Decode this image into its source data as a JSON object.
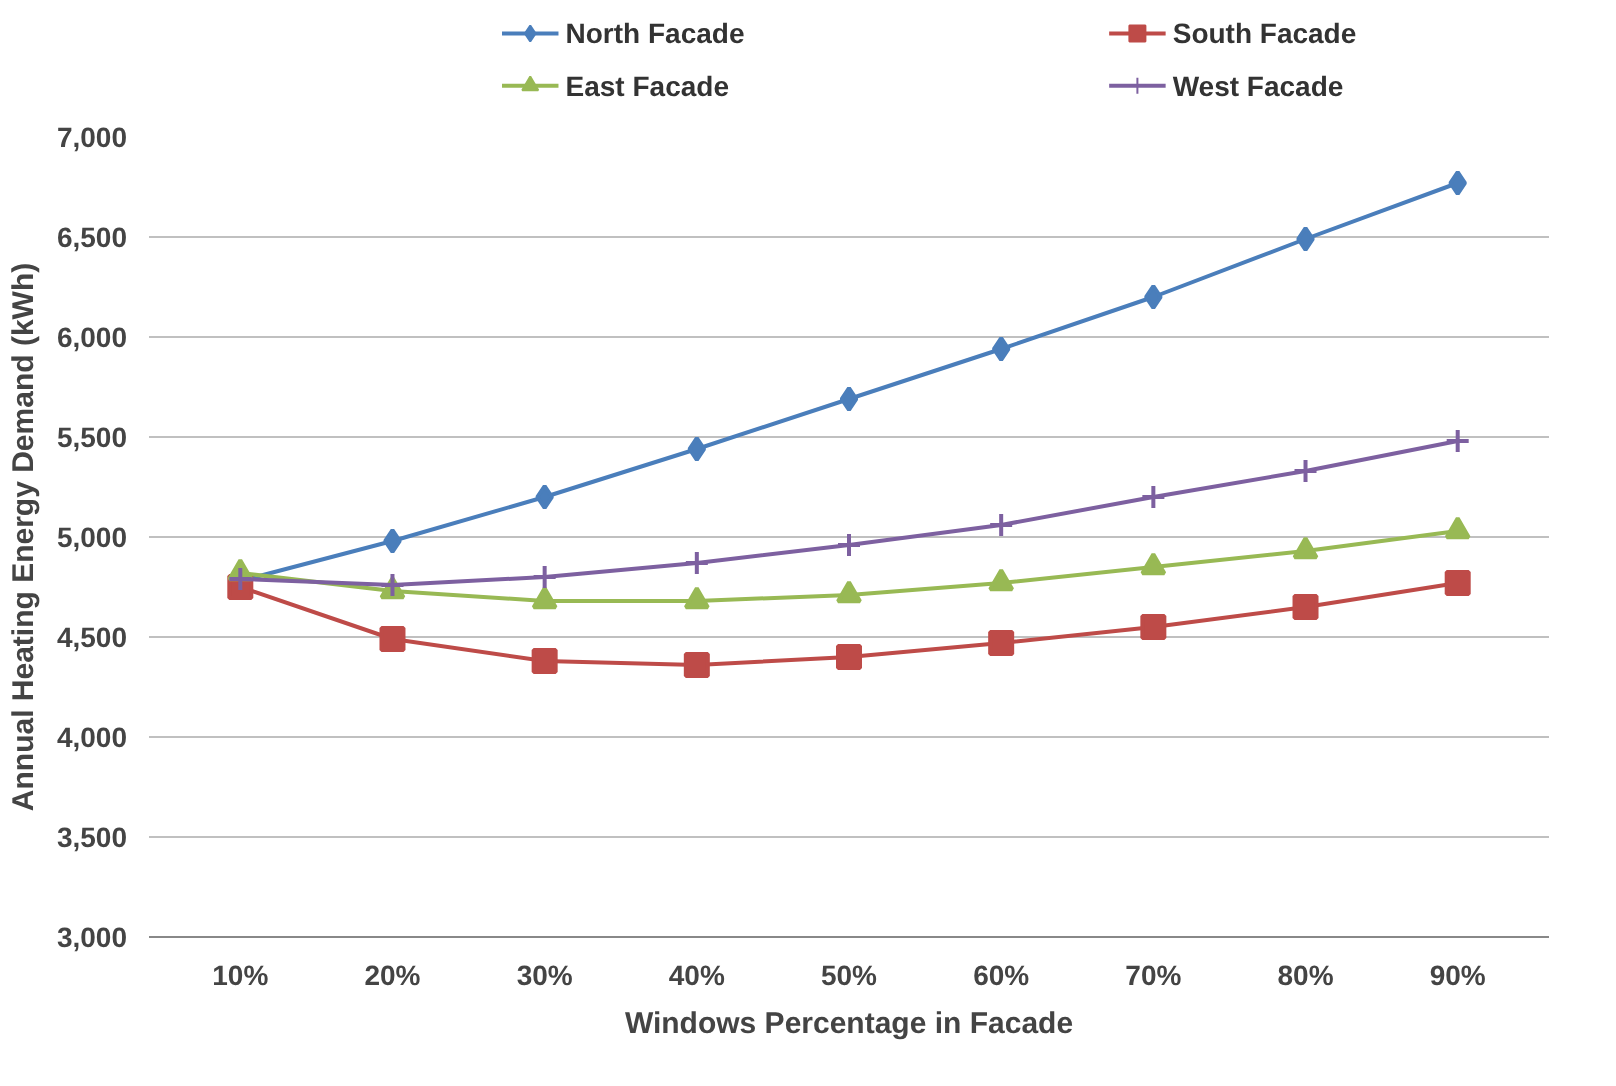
{
  "chart_data": {
    "type": "line",
    "xlabel": "Windows Percentage in Facade",
    "ylabel": "Annual Heating Energy Demand (kWh)",
    "categories": [
      "10%",
      "20%",
      "30%",
      "40%",
      "50%",
      "60%",
      "70%",
      "80%",
      "90%"
    ],
    "ylim": [
      3000,
      7000
    ],
    "yticks": [
      {
        "value": 3000,
        "label": "3,000"
      },
      {
        "value": 3500,
        "label": "3,500"
      },
      {
        "value": 4000,
        "label": "4,000"
      },
      {
        "value": 4500,
        "label": "4,500"
      },
      {
        "value": 5000,
        "label": "5,000"
      },
      {
        "value": 5500,
        "label": "5,500"
      },
      {
        "value": 6000,
        "label": "6,000"
      },
      {
        "value": 6500,
        "label": "6,500"
      },
      {
        "value": 7000,
        "label": "7,000"
      }
    ],
    "grid": "y",
    "legend": "top",
    "series": [
      {
        "name": "North Facade",
        "color": "#4a7ebb",
        "marker": "diamond",
        "values": [
          4780,
          4980,
          5200,
          5440,
          5690,
          5940,
          6200,
          6490,
          6770
        ]
      },
      {
        "name": "South Facade",
        "color": "#be4b48",
        "marker": "square",
        "values": [
          4750,
          4490,
          4380,
          4360,
          4400,
          4470,
          4550,
          4650,
          4770
        ]
      },
      {
        "name": "East Facade",
        "color": "#98b954",
        "marker": "triangle",
        "values": [
          4820,
          4730,
          4680,
          4680,
          4710,
          4770,
          4850,
          4930,
          5030
        ]
      },
      {
        "name": "West Facade",
        "color": "#7d60a0",
        "marker": "cross",
        "values": [
          4790,
          4760,
          4800,
          4870,
          4960,
          5060,
          5200,
          5330,
          5480
        ]
      }
    ]
  }
}
